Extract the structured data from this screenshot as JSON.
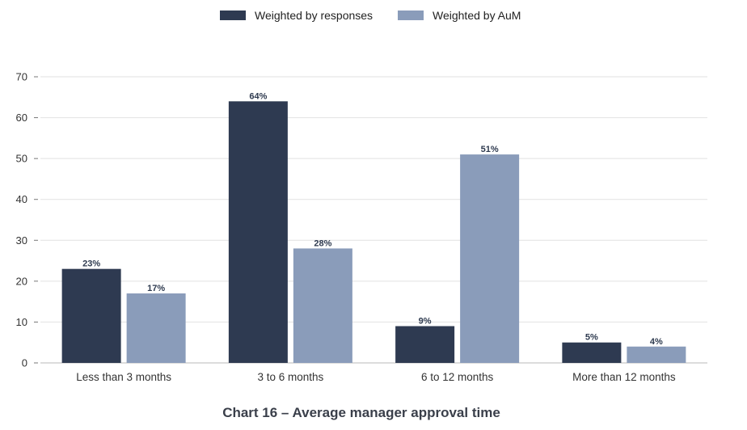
{
  "chart_data": {
    "type": "bar",
    "title": "Chart 16 – Average manager approval time",
    "categories": [
      "Less than 3 months",
      "3 to 6 months",
      "6 to 12 months",
      "More than 12 months"
    ],
    "series": [
      {
        "name": "Weighted by responses",
        "values": [
          23,
          64,
          9,
          5
        ],
        "labels": [
          "23%",
          "64%",
          "9%",
          "5%"
        ],
        "color": "#2e3a51"
      },
      {
        "name": "Weighted by AuM",
        "values": [
          17,
          28,
          51,
          4
        ],
        "labels": [
          "17%",
          "28%",
          "51%",
          "4%"
        ],
        "color": "#8a9cba"
      }
    ],
    "ylim": [
      0,
      70
    ],
    "yticks": [
      0,
      10,
      20,
      30,
      40,
      50,
      60,
      70
    ],
    "grid": true,
    "legend": "top-center"
  }
}
